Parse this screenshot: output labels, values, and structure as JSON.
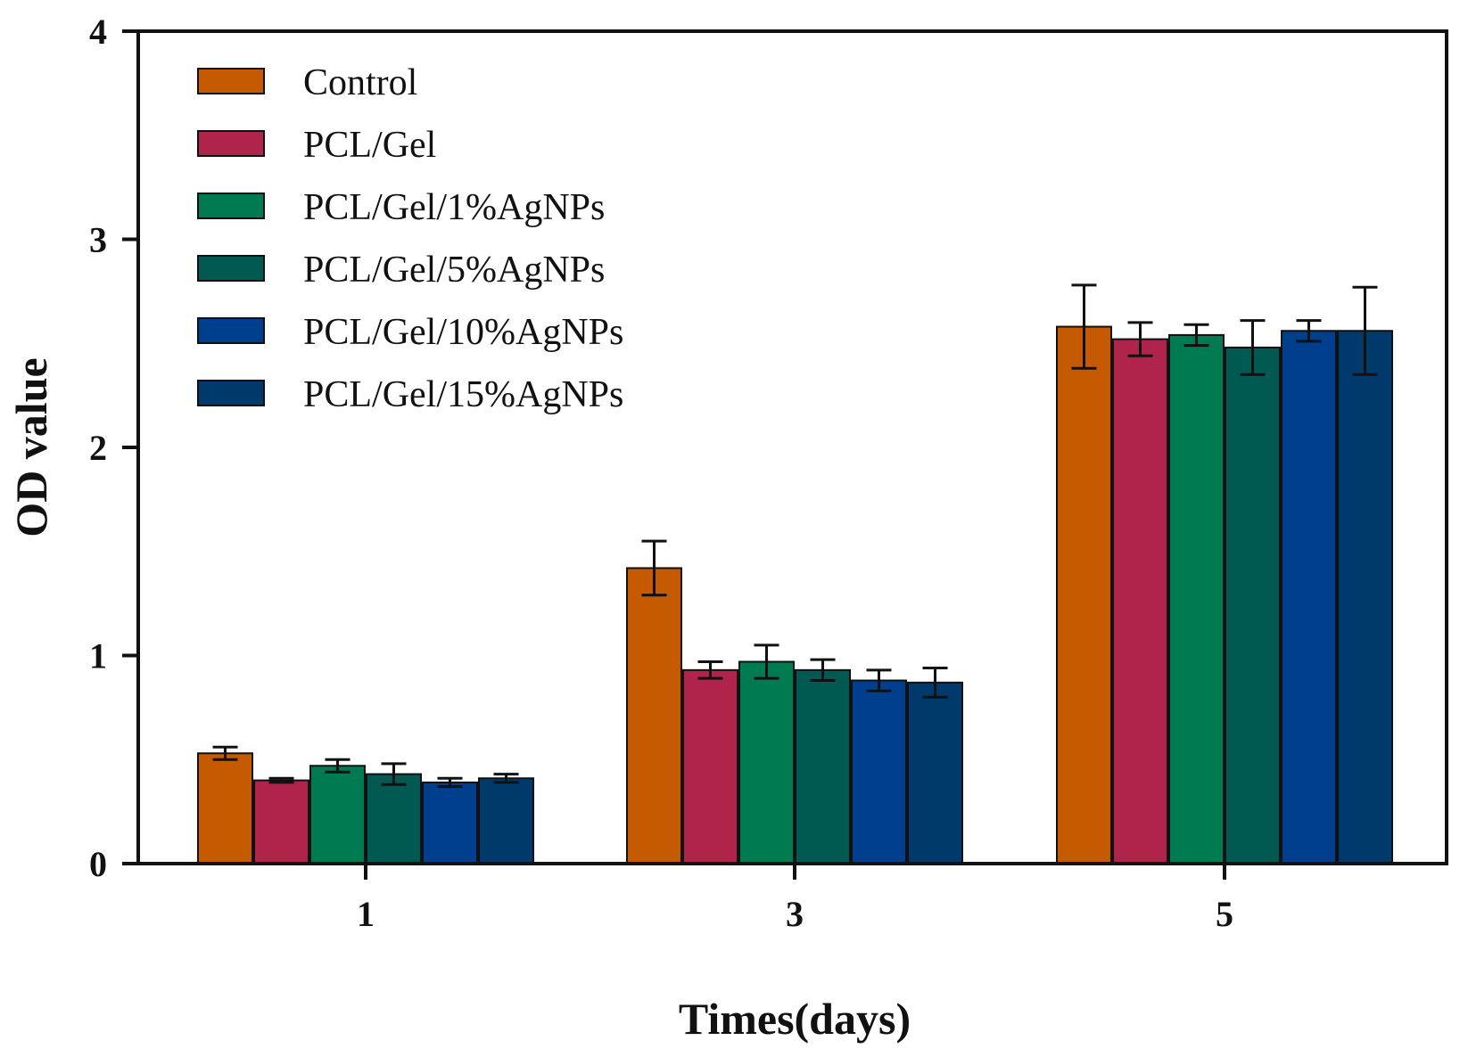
{
  "chart_data": {
    "type": "bar",
    "title": "",
    "xlabel": "Times(days)",
    "ylabel": "OD value",
    "categories": [
      "1",
      "3",
      "5"
    ],
    "ylim": [
      0,
      4
    ],
    "yticks": [
      "0",
      "1",
      "2",
      "3",
      "4"
    ],
    "grid": false,
    "legend_position": "top-left",
    "series": [
      {
        "name": "Control",
        "color": "#C55A00",
        "values": [
          0.53,
          1.42,
          2.58
        ],
        "errors": [
          0.03,
          0.13,
          0.2
        ]
      },
      {
        "name": "PCL/Gel",
        "color": "#B0244C",
        "values": [
          0.4,
          0.93,
          2.52
        ],
        "errors": [
          0.01,
          0.04,
          0.08
        ]
      },
      {
        "name": "PCL/Gel/1%AgNPs",
        "color": "#007A50",
        "values": [
          0.47,
          0.97,
          2.54
        ],
        "errors": [
          0.03,
          0.08,
          0.05
        ]
      },
      {
        "name": "PCL/Gel/5%AgNPs",
        "color": "#005A52",
        "values": [
          0.43,
          0.93,
          2.48
        ],
        "errors": [
          0.05,
          0.05,
          0.13
        ]
      },
      {
        "name": "PCL/Gel/10%AgNPs",
        "color": "#003F8E",
        "values": [
          0.39,
          0.88,
          2.56
        ],
        "errors": [
          0.02,
          0.05,
          0.05
        ]
      },
      {
        "name": "PCL/Gel/15%AgNPs",
        "color": "#003A6C",
        "values": [
          0.41,
          0.87,
          2.56
        ],
        "errors": [
          0.02,
          0.07,
          0.21
        ]
      }
    ]
  }
}
